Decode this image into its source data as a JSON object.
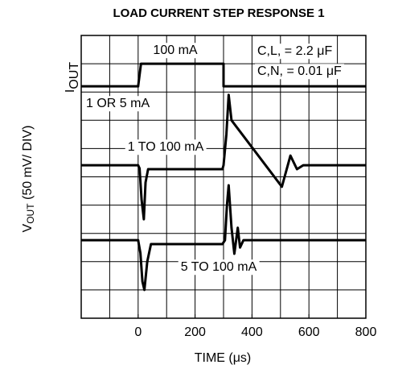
{
  "chart_data": {
    "type": "line",
    "title": "LOAD CURRENT STEP RESPONSE 1",
    "x_label": "TIME (μs)",
    "y_label": [
      "V",
      "OUT",
      " (50 mV/ DIV)"
    ],
    "iout_label": [
      "I",
      "OUT"
    ],
    "xlim": [
      -200,
      800
    ],
    "xticks": [
      0,
      200,
      400,
      600,
      800
    ],
    "ylim": [
      0,
      10
    ],
    "grid": true,
    "annotations": {
      "step": "100 mA",
      "cl": [
        "C",
        "L",
        " = 2.2 μF"
      ],
      "cn": [
        "C",
        "N",
        " = 0.01 μF"
      ],
      "base": "1 OR 5 mA",
      "trace1": "1 TO 100 mA",
      "trace2": "5 TO 100 mA"
    },
    "series": [
      {
        "color": "#000000",
        "x": [
          -200,
          0,
          10,
          300,
          300,
          800
        ],
        "values": [
          8.2,
          8.2,
          9.0,
          9.0,
          8.2,
          8.2
        ]
      },
      {
        "color": "#000000",
        "x": [
          -200,
          0,
          5,
          12,
          20,
          26,
          35,
          296,
          300,
          310,
          318,
          328,
          505,
          535,
          558,
          580,
          800
        ],
        "values": [
          5.41,
          5.41,
          5.3,
          4.2,
          3.5,
          4.8,
          5.27,
          5.27,
          5.41,
          6.5,
          7.9,
          7.0,
          4.65,
          5.75,
          5.27,
          5.41,
          5.41
        ]
      },
      {
        "color": "#000000",
        "x": [
          -200,
          0,
          8,
          15,
          22,
          32,
          45,
          296,
          305,
          312,
          318,
          328,
          338,
          350,
          358,
          370,
          800
        ],
        "values": [
          2.76,
          2.76,
          2.3,
          1.3,
          1.0,
          2.0,
          2.62,
          2.62,
          2.76,
          4.0,
          4.7,
          3.2,
          2.28,
          3.2,
          2.5,
          2.76,
          2.76
        ]
      }
    ]
  }
}
